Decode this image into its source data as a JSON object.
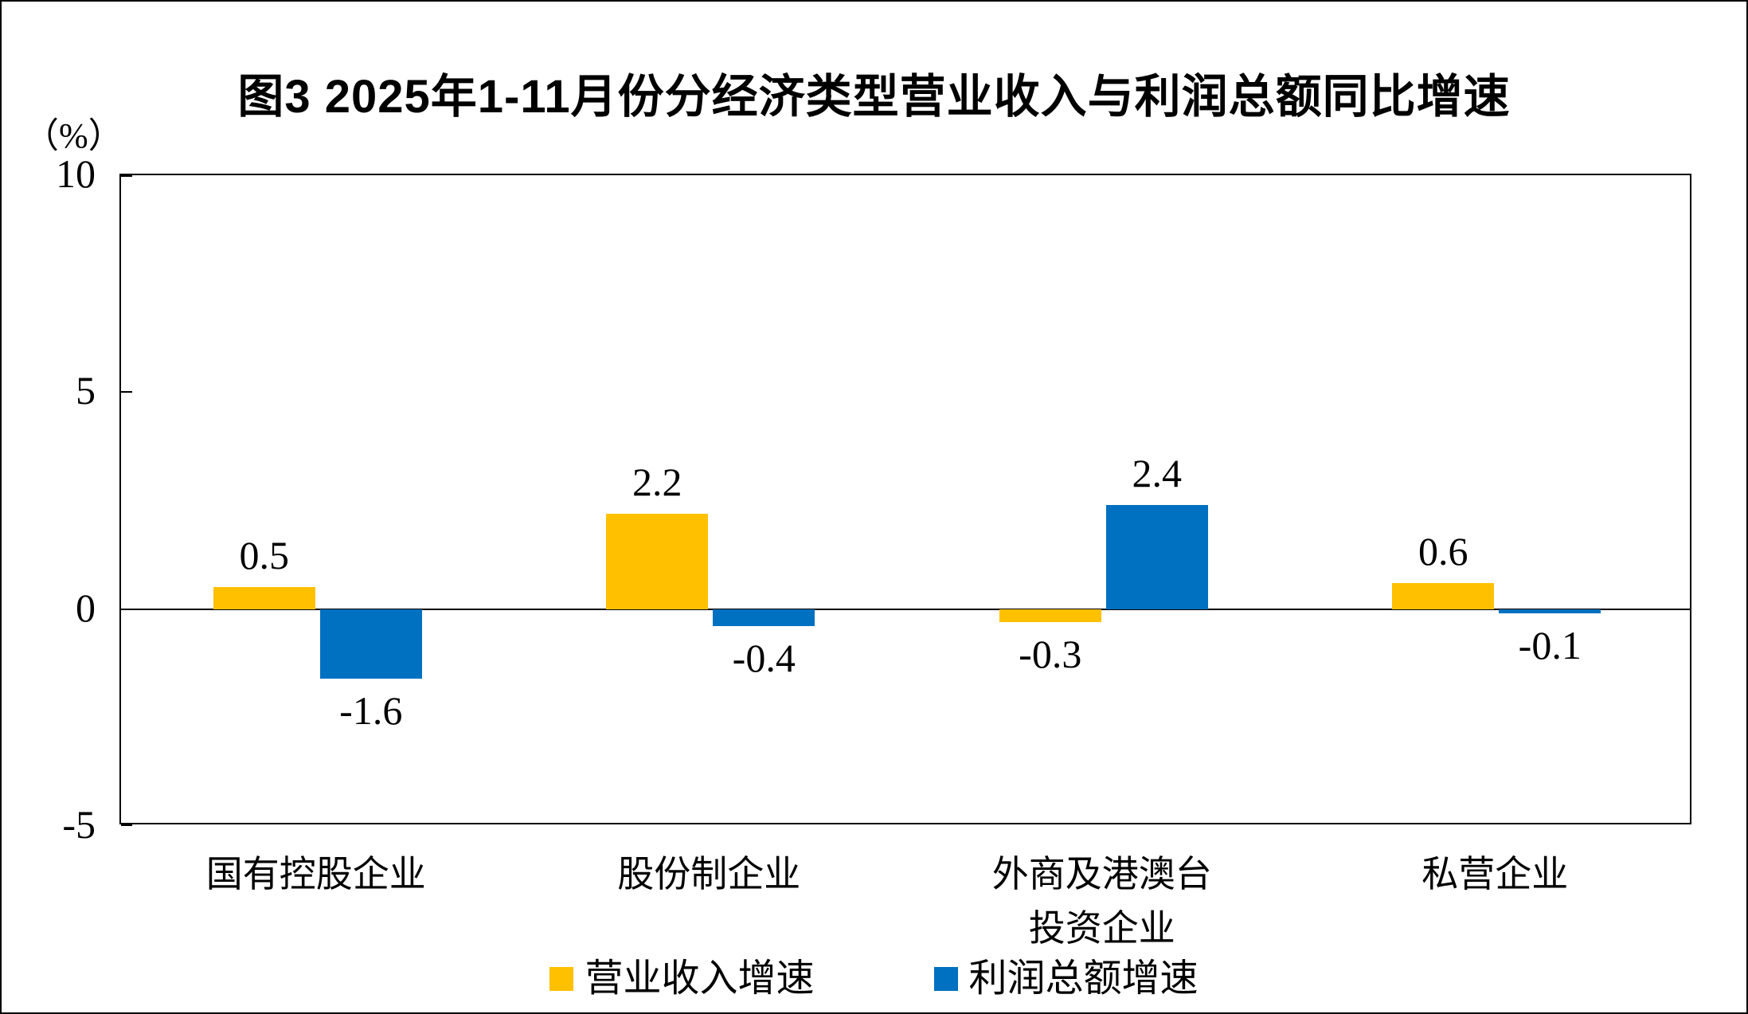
{
  "chart_data": {
    "type": "bar",
    "title": "图3 2025年1-11月份分经济类型营业收入与利润总额同比增速",
    "y_unit_label": "（%）",
    "categories": [
      "国有控股企业",
      "股份制企业",
      "外商及港澳台\n投资企业",
      "私营企业"
    ],
    "series": [
      {
        "name": "营业收入增速",
        "color": "#FFC000",
        "values": [
          0.5,
          2.2,
          -0.3,
          0.6
        ]
      },
      {
        "name": "利润总额增速",
        "color": "#0070C0",
        "values": [
          -1.6,
          -0.4,
          2.4,
          -0.1
        ]
      }
    ],
    "data_labels": [
      "0.5",
      "2.2",
      "-0.3",
      "0.6",
      "-1.6",
      "-0.4",
      "2.4",
      "-0.1"
    ],
    "ylim": [
      -5,
      10
    ],
    "yticks": [
      10,
      5,
      0,
      -5
    ],
    "grid": false,
    "zero_line": true,
    "legend_position": "bottom"
  }
}
